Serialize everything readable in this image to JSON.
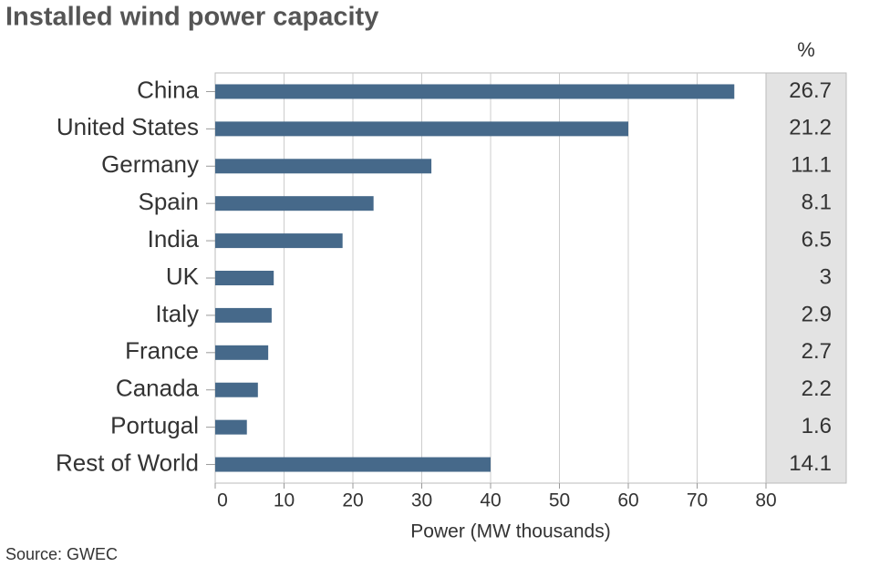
{
  "chart_data": {
    "type": "bar",
    "orientation": "horizontal",
    "title": "Installed wind power capacity",
    "categories": [
      "China",
      "United States",
      "Germany",
      "Spain",
      "India",
      "UK",
      "Italy",
      "France",
      "Canada",
      "Portugal",
      "Rest of World"
    ],
    "values": [
      75.4,
      60.0,
      31.4,
      23.0,
      18.5,
      8.5,
      8.2,
      7.7,
      6.2,
      4.6,
      40.0
    ],
    "color": "#46698a",
    "share_header": "%",
    "shares": [
      26.7,
      21.2,
      11.1,
      8.1,
      6.5,
      3,
      2.9,
      2.7,
      2.2,
      1.6,
      14.1
    ],
    "xlim": [
      0,
      80
    ],
    "xticks": [
      0,
      10,
      20,
      30,
      40,
      50,
      60,
      70,
      80
    ],
    "xlabel": "Power (MW thousands)",
    "grid": true,
    "source": "Source: GWEC"
  }
}
